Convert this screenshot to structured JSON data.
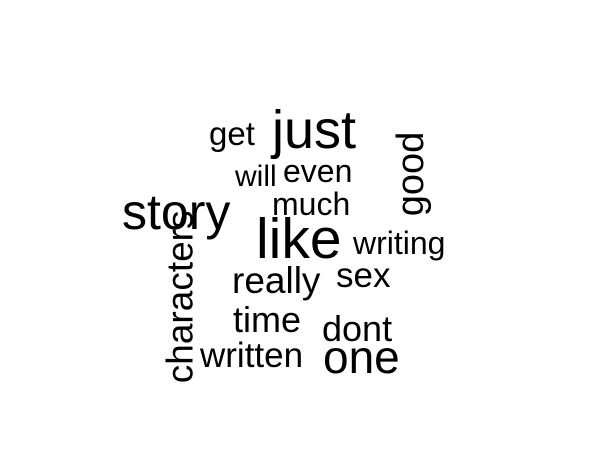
{
  "words": [
    {
      "text": "just",
      "weight": 1.0,
      "orientation": "horizontal"
    },
    {
      "text": "get",
      "weight": 0.55,
      "orientation": "horizontal"
    },
    {
      "text": "good",
      "weight": 0.7,
      "orientation": "vertical"
    },
    {
      "text": "will",
      "weight": 0.5,
      "orientation": "horizontal"
    },
    {
      "text": "even",
      "weight": 0.55,
      "orientation": "horizontal"
    },
    {
      "text": "story",
      "weight": 0.95,
      "orientation": "horizontal"
    },
    {
      "text": "much",
      "weight": 0.55,
      "orientation": "horizontal"
    },
    {
      "text": "like",
      "weight": 1.0,
      "orientation": "horizontal"
    },
    {
      "text": "writing",
      "weight": 0.55,
      "orientation": "horizontal"
    },
    {
      "text": "characters",
      "weight": 0.6,
      "orientation": "vertical"
    },
    {
      "text": "really",
      "weight": 0.65,
      "orientation": "horizontal"
    },
    {
      "text": "sex",
      "weight": 0.6,
      "orientation": "horizontal"
    },
    {
      "text": "time",
      "weight": 0.65,
      "orientation": "horizontal"
    },
    {
      "text": "dont",
      "weight": 0.65,
      "orientation": "horizontal"
    },
    {
      "text": "written",
      "weight": 0.62,
      "orientation": "horizontal"
    },
    {
      "text": "one",
      "weight": 0.85,
      "orientation": "horizontal"
    }
  ],
  "colors": {
    "text": "#000000",
    "background": "#ffffff"
  }
}
